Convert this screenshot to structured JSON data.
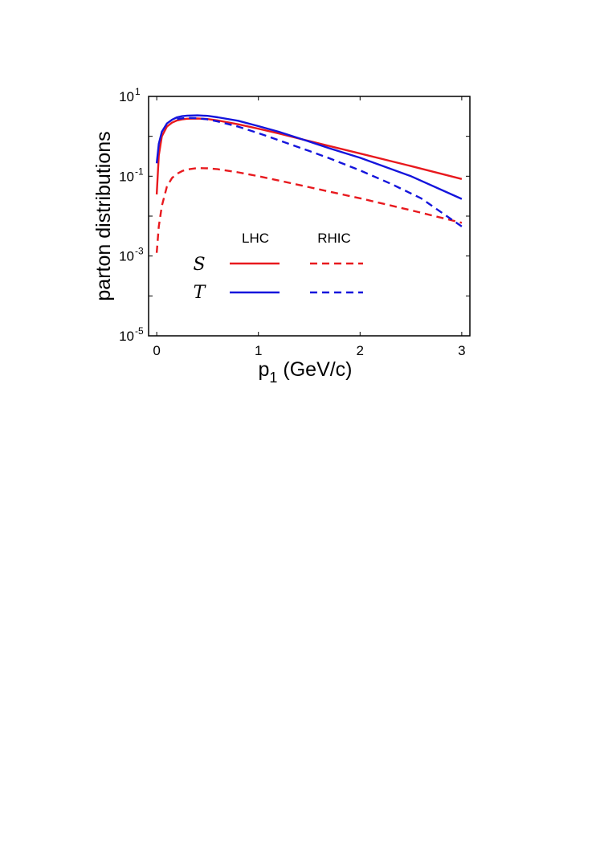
{
  "chart_data": {
    "type": "line",
    "xlabel": "p",
    "xlabel_subscript": "1",
    "xlabel_unit": "(GeV/c)",
    "ylabel": "parton distributions",
    "xlim": [
      -0.08,
      3.08
    ],
    "xticks": [
      0,
      1,
      2,
      3
    ],
    "yscale": "log",
    "ylim_exponent": [
      -5,
      1
    ],
    "yticks": [
      {
        "base": "10",
        "exp": "1",
        "power": 1
      },
      {
        "base": "10",
        "exp": "-1",
        "power": -1
      },
      {
        "base": "10",
        "exp": "-3",
        "power": -3
      },
      {
        "base": "10",
        "exp": "-5",
        "power": -5
      }
    ],
    "grid": false,
    "legend": {
      "placement": "center",
      "column_labels": [
        "LHC",
        "RHIC"
      ],
      "row_labels": [
        "S",
        "T"
      ]
    },
    "series": [
      {
        "name": "S LHC",
        "symbol": "S",
        "experiment": "LHC",
        "color": "#e8191e",
        "dash": "solid",
        "x": [
          0.0,
          0.02,
          0.05,
          0.1,
          0.15,
          0.2,
          0.25,
          0.3,
          0.4,
          0.5,
          0.6,
          0.8,
          1.0,
          1.2,
          1.5,
          1.7,
          2.0,
          2.5,
          3.0
        ],
        "y": [
          0.035,
          0.33,
          1.0,
          1.75,
          2.2,
          2.5,
          2.65,
          2.75,
          2.8,
          2.7,
          2.5,
          2.0,
          1.55,
          1.18,
          0.76,
          0.57,
          0.37,
          0.18,
          0.085
        ]
      },
      {
        "name": "T LHC",
        "symbol": "T",
        "experiment": "LHC",
        "color": "#1414dc",
        "dash": "solid",
        "x": [
          0.0,
          0.02,
          0.05,
          0.1,
          0.15,
          0.2,
          0.25,
          0.3,
          0.4,
          0.5,
          0.6,
          0.8,
          1.0,
          1.2,
          1.5,
          1.7,
          2.0,
          2.5,
          3.0
        ],
        "y": [
          0.21,
          0.65,
          1.3,
          2.1,
          2.6,
          3.0,
          3.2,
          3.3,
          3.35,
          3.25,
          3.0,
          2.45,
          1.8,
          1.3,
          0.74,
          0.5,
          0.29,
          0.1,
          0.027
        ]
      },
      {
        "name": "S RHIC",
        "symbol": "S",
        "experiment": "RHIC",
        "color": "#e8191e",
        "dash": "dashed",
        "x": [
          0.0,
          0.02,
          0.05,
          0.1,
          0.15,
          0.2,
          0.25,
          0.3,
          0.4,
          0.5,
          0.6,
          0.8,
          1.0,
          1.2,
          1.5,
          1.7,
          2.0,
          2.5,
          3.0
        ],
        "y": [
          0.0012,
          0.0055,
          0.018,
          0.055,
          0.09,
          0.115,
          0.135,
          0.148,
          0.16,
          0.158,
          0.15,
          0.125,
          0.1,
          0.078,
          0.053,
          0.041,
          0.028,
          0.014,
          0.0068
        ]
      },
      {
        "name": "T RHIC",
        "symbol": "T",
        "experiment": "RHIC",
        "color": "#1414dc",
        "dash": "dashed",
        "x": [
          0.2,
          0.25,
          0.3,
          0.4,
          0.5,
          0.6,
          0.8,
          1.0,
          1.2,
          1.5,
          1.7,
          2.0,
          2.3,
          2.6,
          3.0
        ],
        "y": [
          2.7,
          2.82,
          2.9,
          2.85,
          2.65,
          2.35,
          1.75,
          1.2,
          0.8,
          0.43,
          0.28,
          0.14,
          0.065,
          0.028,
          0.0055
        ]
      }
    ]
  }
}
